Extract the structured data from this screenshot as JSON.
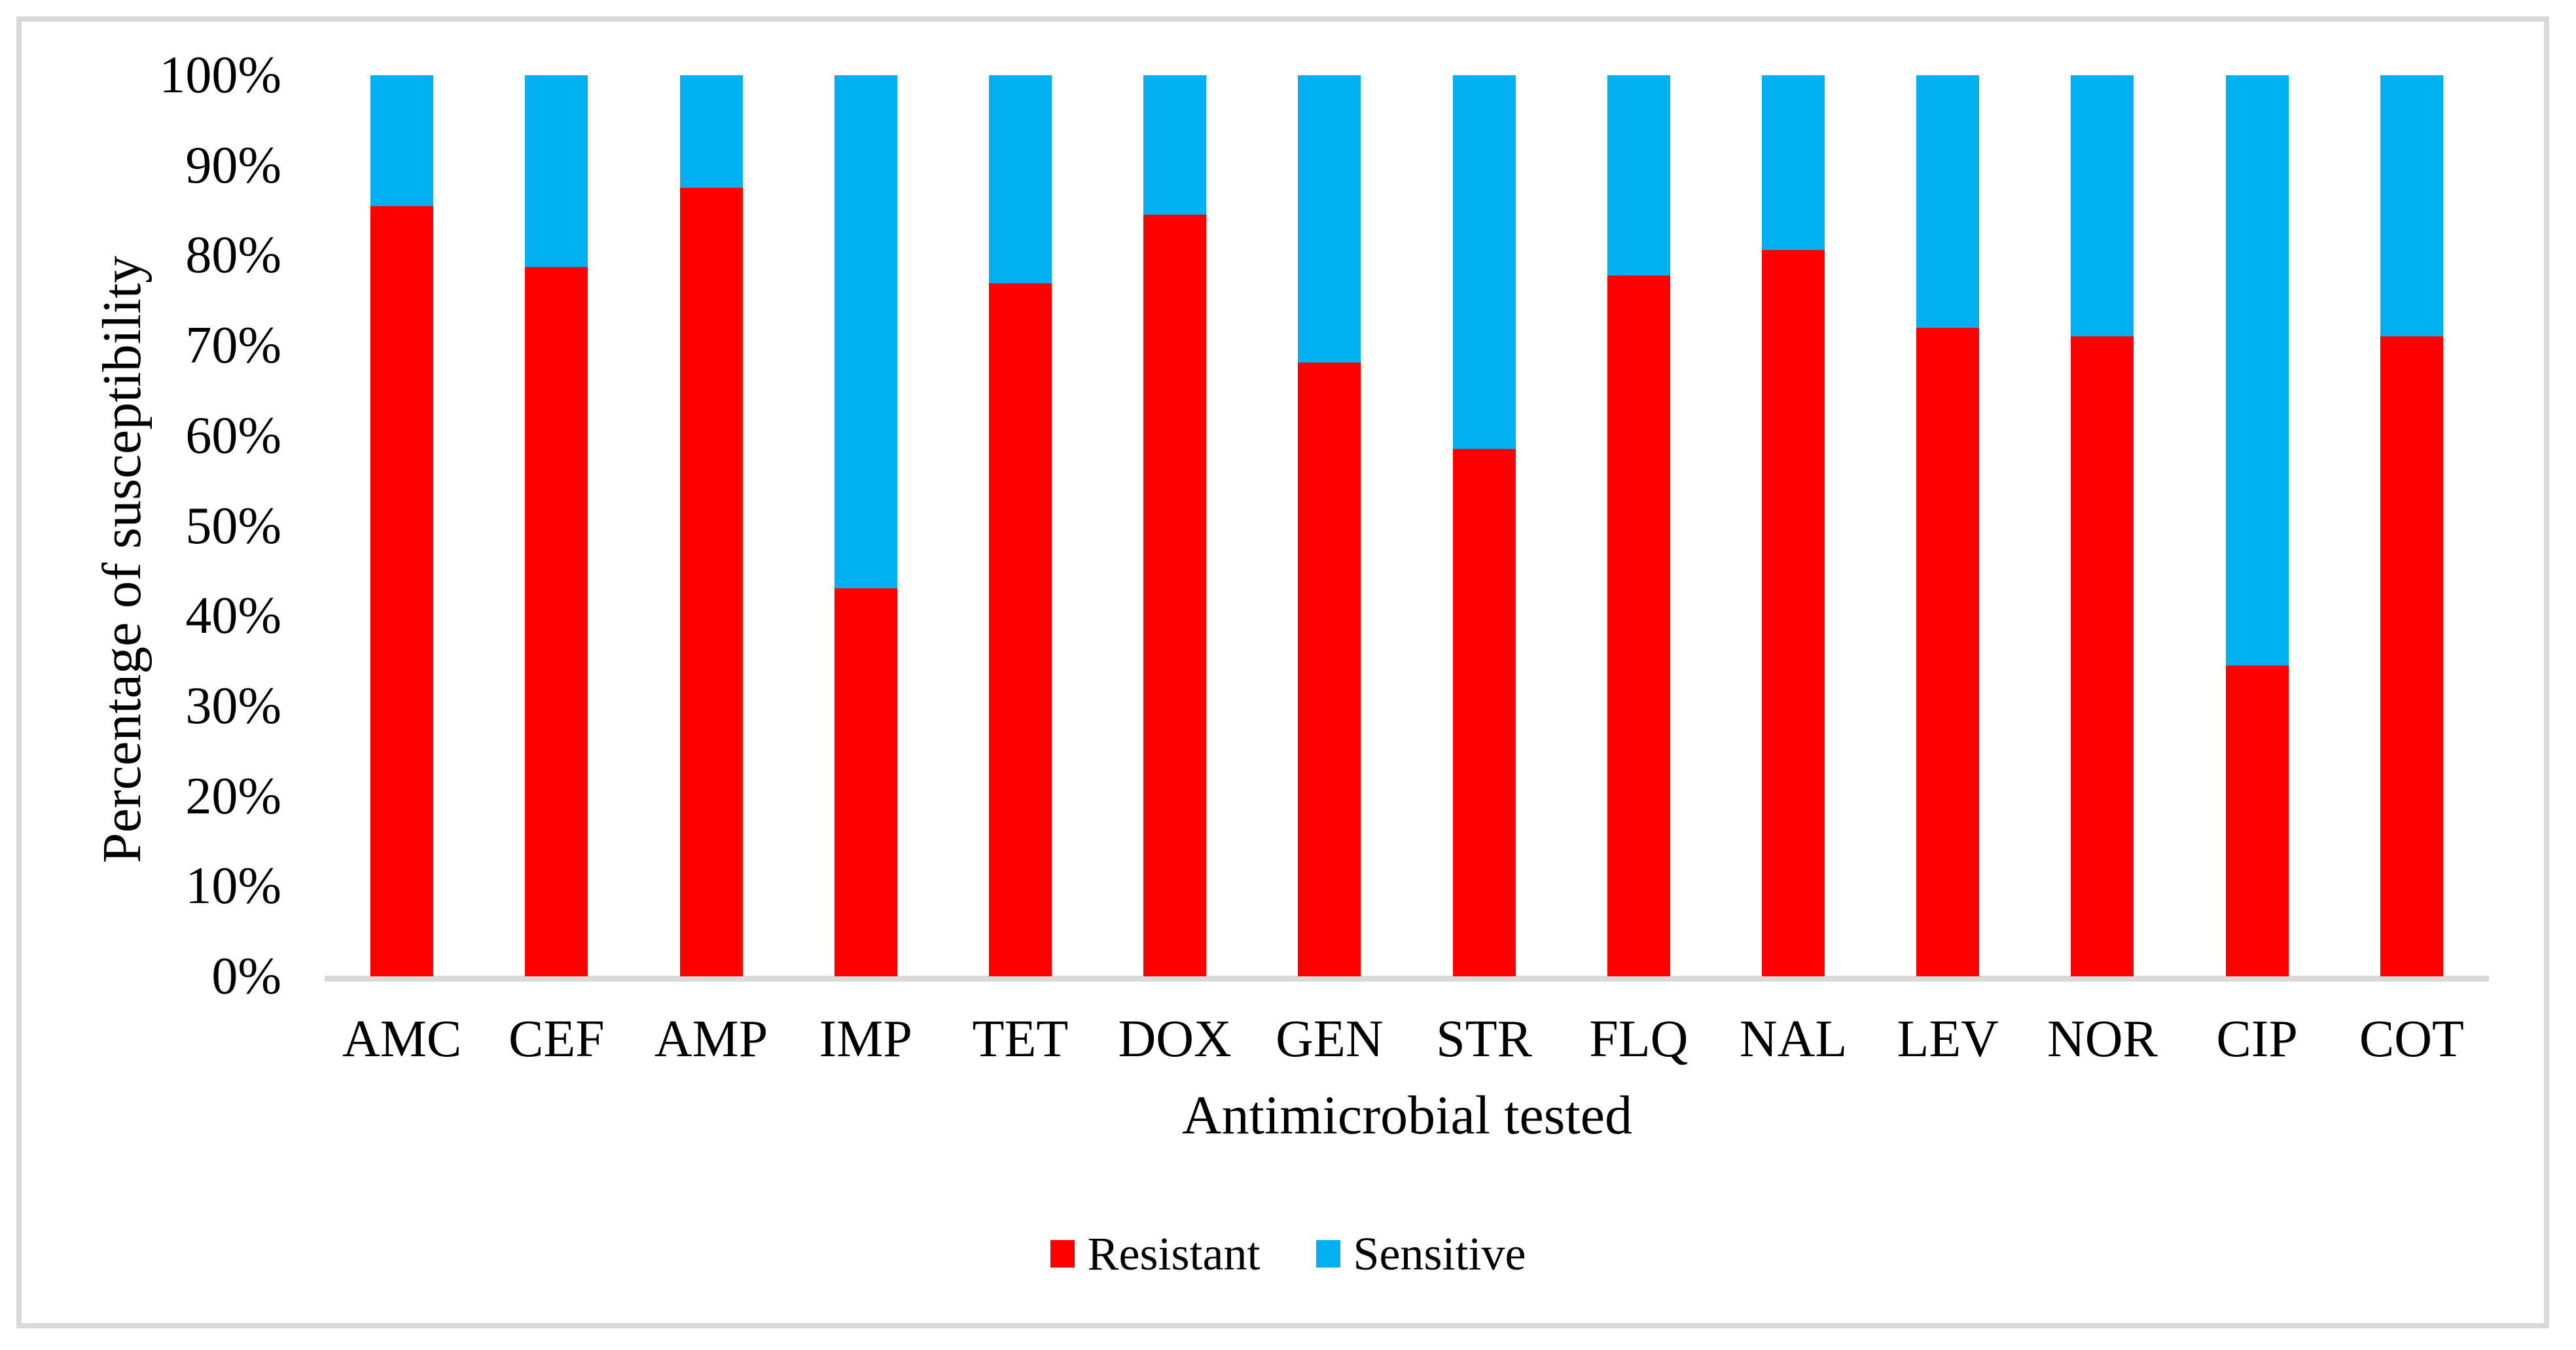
{
  "figure": {
    "background": "#ffffff",
    "border_color": "#d9d9d9",
    "axis_line_color": "#d9d9d9",
    "text_color": "#000000"
  },
  "chart_data": {
    "type": "bar",
    "stacked": true,
    "title": "",
    "xlabel": "Antimicrobial tested",
    "ylabel": "Percentage of susceptibility",
    "categories": [
      "AMC",
      "CEF",
      "AMP",
      "IMP",
      "TET",
      "DOX",
      "GEN",
      "STR",
      "FLQ",
      "NAL",
      "LEV",
      "NOR",
      "CIP",
      "COT"
    ],
    "series": [
      {
        "name": "Resistant",
        "color": "#ff0000",
        "values": [
          85.5,
          78.7,
          87.5,
          43.1,
          76.9,
          84.5,
          68.1,
          58.5,
          77.8,
          80.6,
          72.0,
          71.0,
          34.5,
          71.0
        ]
      },
      {
        "name": "Sensitive",
        "color": "#00b0f0",
        "values": [
          14.5,
          21.3,
          12.5,
          56.9,
          23.1,
          15.5,
          31.9,
          41.5,
          22.2,
          19.4,
          28.0,
          29.0,
          65.5,
          29.0
        ]
      }
    ],
    "y_axis": {
      "ticks": [
        "100%",
        "90%",
        "80%",
        "70%",
        "60%",
        "50%",
        "40%",
        "30%",
        "20%",
        "10%",
        "0%"
      ],
      "min": 0,
      "max": 100,
      "gridlines": false
    },
    "legend": {
      "position": "bottom",
      "items": [
        {
          "label": "Resistant",
          "color": "#ff0000"
        },
        {
          "label": "Sensitive",
          "color": "#00b0f0"
        }
      ]
    }
  }
}
